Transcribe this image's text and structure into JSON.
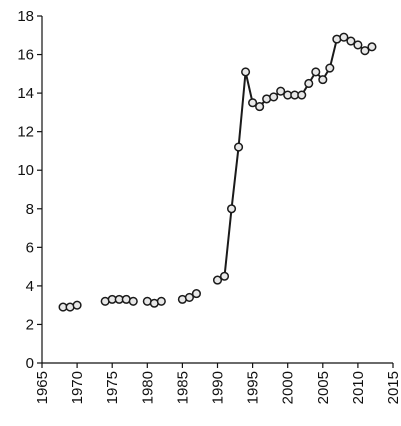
{
  "chart_data": {
    "type": "line",
    "x": [
      1968,
      1969,
      1970,
      1971,
      1972,
      1973,
      1974,
      1975,
      1976,
      1977,
      1978,
      1979,
      1980,
      1981,
      1982,
      1983,
      1984,
      1985,
      1986,
      1987,
      1988,
      1989,
      1990,
      1991,
      1992,
      1993,
      1994,
      1995,
      1996,
      1997,
      1998,
      1999,
      2000,
      2001,
      2002,
      2003,
      2004,
      2005,
      2006,
      2007,
      2008,
      2009,
      2010,
      2011,
      2012
    ],
    "values": [
      2.9,
      2.9,
      3.0,
      null,
      null,
      null,
      3.2,
      3.3,
      3.3,
      3.3,
      3.2,
      null,
      3.2,
      3.1,
      3.2,
      null,
      null,
      3.3,
      3.4,
      3.6,
      null,
      null,
      4.3,
      4.5,
      8.0,
      11.2,
      15.1,
      13.5,
      13.3,
      13.7,
      13.8,
      14.1,
      13.9,
      13.9,
      13.9,
      14.5,
      15.1,
      14.7,
      15.3,
      16.8,
      16.9,
      16.7,
      16.5,
      16.2,
      16.4
    ],
    "color": "#1a1a1a",
    "xlim": [
      1965,
      2015
    ],
    "xticks": [
      1965,
      1970,
      1975,
      1980,
      1985,
      1990,
      1995,
      2000,
      2005,
      2010,
      2015
    ],
    "ylim": [
      0,
      18
    ],
    "yticks": [
      0,
      2,
      4,
      6,
      8,
      10,
      12,
      14,
      16,
      18
    ],
    "grid": false
  }
}
